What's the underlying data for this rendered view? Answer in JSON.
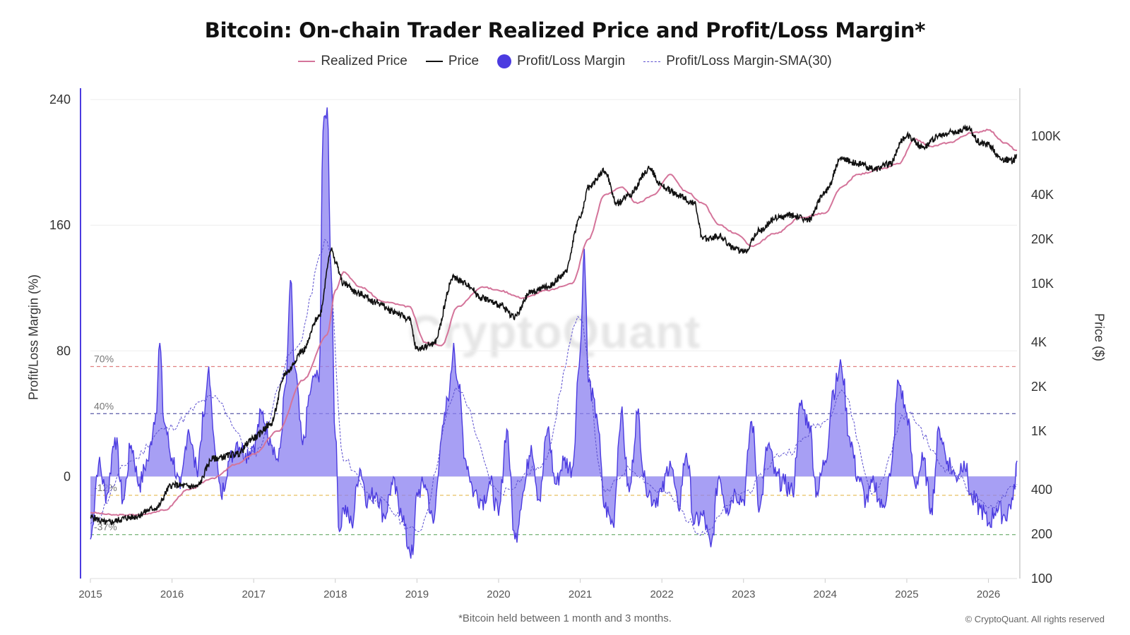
{
  "chart_data": {
    "type": "area",
    "title": "Bitcoin: On-chain Trader Realized Price and Profit/Loss Margin*",
    "footnote": "*Bitcoin held between 1 month and 3 months.",
    "copyright": "© CryptoQuant. All rights reserved",
    "watermark": "CryptoQuant",
    "ylabel_left": "Profit/Loss Margin (%)",
    "ylabel_right": "Price ($)",
    "legend": [
      {
        "label": "Realized Price",
        "color": "#d4749a",
        "style": "line"
      },
      {
        "label": "Price",
        "color": "#111111",
        "style": "line"
      },
      {
        "label": "Profit/Loss Margin",
        "color": "#4b3be0",
        "style": "dot"
      },
      {
        "label": "Profit/Loss Margin-SMA(30)",
        "color": "#5b4fcf",
        "style": "dash"
      }
    ],
    "x_range": [
      2015.0,
      2026.35
    ],
    "x_ticks": [
      "2015",
      "2016",
      "2017",
      "2018",
      "2019",
      "2020",
      "2021",
      "2022",
      "2023",
      "2024",
      "2025",
      "2026"
    ],
    "y_left_range": [
      -65,
      245
    ],
    "y_left_ticks": [
      240,
      160,
      80,
      0
    ],
    "y_right_log_range": [
      100,
      200000
    ],
    "y_right_ticks": [
      {
        "label": "100K",
        "value": 100000
      },
      {
        "label": "40K",
        "value": 40000
      },
      {
        "label": "20K",
        "value": 20000
      },
      {
        "label": "10K",
        "value": 10000
      },
      {
        "label": "4K",
        "value": 4000
      },
      {
        "label": "2K",
        "value": 2000
      },
      {
        "label": "1K",
        "value": 1000
      },
      {
        "label": "400",
        "value": 400
      },
      {
        "label": "200",
        "value": 200
      },
      {
        "label": "100",
        "value": 100
      }
    ],
    "reference_lines": [
      {
        "label": "70%",
        "value": 70,
        "color": "#e08080"
      },
      {
        "label": "40%",
        "value": 40,
        "color": "#6a6ab0"
      },
      {
        "label": "-12%",
        "value": -12,
        "color": "#e8c060"
      },
      {
        "label": "-37%",
        "value": -37,
        "color": "#80b880"
      }
    ],
    "series": [
      {
        "name": "Profit/Loss Margin",
        "color": "#4b3be0",
        "x": [
          2015.0,
          2015.1,
          2015.2,
          2015.3,
          2015.4,
          2015.5,
          2015.6,
          2015.7,
          2015.8,
          2015.85,
          2015.9,
          2016.0,
          2016.1,
          2016.2,
          2016.3,
          2016.4,
          2016.45,
          2016.5,
          2016.6,
          2016.7,
          2016.8,
          2016.9,
          2017.0,
          2017.1,
          2017.2,
          2017.3,
          2017.4,
          2017.45,
          2017.5,
          2017.6,
          2017.7,
          2017.75,
          2017.8,
          2017.85,
          2017.9,
          2017.95,
          2018.0,
          2018.05,
          2018.1,
          2018.2,
          2018.3,
          2018.4,
          2018.5,
          2018.6,
          2018.7,
          2018.8,
          2018.9,
          2018.95,
          2019.0,
          2019.1,
          2019.2,
          2019.3,
          2019.4,
          2019.45,
          2019.5,
          2019.6,
          2019.7,
          2019.8,
          2019.9,
          2020.0,
          2020.1,
          2020.2,
          2020.3,
          2020.4,
          2020.5,
          2020.6,
          2020.7,
          2020.8,
          2020.9,
          2021.0,
          2021.05,
          2021.1,
          2021.2,
          2021.3,
          2021.4,
          2021.5,
          2021.6,
          2021.7,
          2021.8,
          2021.9,
          2022.0,
          2022.1,
          2022.2,
          2022.3,
          2022.4,
          2022.5,
          2022.6,
          2022.7,
          2022.8,
          2022.9,
          2023.0,
          2023.1,
          2023.2,
          2023.3,
          2023.4,
          2023.5,
          2023.6,
          2023.7,
          2023.8,
          2023.9,
          2024.0,
          2024.1,
          2024.2,
          2024.3,
          2024.4,
          2024.5,
          2024.6,
          2024.7,
          2024.8,
          2024.9,
          2025.0,
          2025.1,
          2025.2,
          2025.3,
          2025.4,
          2025.5,
          2025.6,
          2025.7,
          2025.8,
          2025.9,
          2026.0,
          2026.1,
          2026.2,
          2026.3,
          2026.35
        ],
        "values": [
          -40,
          8,
          -12,
          25,
          -15,
          20,
          -5,
          10,
          40,
          85,
          35,
          12,
          -8,
          30,
          5,
          40,
          70,
          30,
          -12,
          10,
          22,
          15,
          20,
          40,
          25,
          10,
          60,
          125,
          70,
          20,
          55,
          65,
          60,
          220,
          235,
          130,
          25,
          -35,
          -20,
          -30,
          5,
          -15,
          -10,
          -25,
          -5,
          -20,
          -45,
          -50,
          -10,
          -5,
          -30,
          25,
          55,
          85,
          60,
          10,
          -10,
          -15,
          -5,
          -25,
          30,
          -40,
          -10,
          20,
          -15,
          30,
          -5,
          10,
          5,
          80,
          145,
          60,
          40,
          -20,
          -30,
          40,
          -10,
          40,
          -5,
          -15,
          -10,
          10,
          -20,
          15,
          -30,
          -25,
          -45,
          0,
          -20,
          -10,
          -15,
          35,
          -20,
          20,
          0,
          -5,
          -10,
          45,
          35,
          -10,
          10,
          55,
          70,
          25,
          0,
          -15,
          -5,
          -20,
          0,
          60,
          40,
          -5,
          10,
          -20,
          30,
          10,
          0,
          10,
          -15,
          -20,
          -30,
          -20,
          -25,
          -15,
          10
        ]
      },
      {
        "name": "Price",
        "color": "#111111",
        "x": [
          2015.0,
          2015.2,
          2015.5,
          2015.8,
          2016.0,
          2016.3,
          2016.5,
          2016.8,
          2017.0,
          2017.2,
          2017.4,
          2017.6,
          2017.8,
          2017.95,
          2018.0,
          2018.1,
          2018.3,
          2018.5,
          2018.7,
          2018.9,
          2019.0,
          2019.2,
          2019.45,
          2019.6,
          2019.8,
          2020.0,
          2020.2,
          2020.4,
          2020.6,
          2020.8,
          2021.0,
          2021.1,
          2021.3,
          2021.45,
          2021.6,
          2021.85,
          2022.0,
          2022.2,
          2022.4,
          2022.5,
          2022.7,
          2022.9,
          2023.0,
          2023.2,
          2023.4,
          2023.6,
          2023.8,
          2024.0,
          2024.2,
          2024.4,
          2024.6,
          2024.8,
          2024.95,
          2025.0,
          2025.2,
          2025.4,
          2025.6,
          2025.75,
          2025.9,
          2026.0,
          2026.15,
          2026.3,
          2026.35
        ],
        "values": [
          260,
          240,
          260,
          300,
          430,
          420,
          650,
          700,
          900,
          1100,
          2500,
          3500,
          6000,
          17000,
          14000,
          10000,
          8500,
          7500,
          6500,
          5800,
          3600,
          3900,
          11000,
          10000,
          8000,
          7200,
          6000,
          8800,
          9500,
          11500,
          28000,
          45000,
          58000,
          35000,
          40000,
          60000,
          46000,
          40000,
          35000,
          20000,
          21000,
          17000,
          16500,
          23000,
          28000,
          29000,
          27000,
          42000,
          70000,
          65000,
          60000,
          65000,
          95000,
          100000,
          85000,
          100000,
          108000,
          112000,
          90000,
          88000,
          70000,
          68000,
          75000
        ]
      },
      {
        "name": "Realized Price",
        "color": "#d4749a",
        "x": [
          2015.0,
          2015.3,
          2015.6,
          2015.9,
          2016.2,
          2016.5,
          2016.8,
          2017.0,
          2017.3,
          2017.6,
          2017.9,
          2018.0,
          2018.1,
          2018.3,
          2018.6,
          2018.9,
          2019.1,
          2019.3,
          2019.5,
          2019.8,
          2020.0,
          2020.3,
          2020.6,
          2020.9,
          2021.1,
          2021.3,
          2021.5,
          2021.7,
          2021.9,
          2022.1,
          2022.3,
          2022.5,
          2022.7,
          2022.9,
          2023.1,
          2023.4,
          2023.7,
          2024.0,
          2024.2,
          2024.4,
          2024.7,
          2024.9,
          2025.1,
          2025.3,
          2025.5,
          2025.8,
          2026.0,
          2026.2,
          2026.35
        ],
        "values": [
          280,
          270,
          270,
          290,
          400,
          480,
          600,
          700,
          1000,
          2200,
          4500,
          9000,
          12000,
          9500,
          7500,
          7000,
          4000,
          3800,
          7000,
          9500,
          9000,
          8000,
          9000,
          10000,
          20000,
          40000,
          45000,
          35000,
          40000,
          55000,
          42000,
          35000,
          25000,
          22000,
          18000,
          22000,
          28000,
          30000,
          45000,
          55000,
          60000,
          65000,
          95000,
          85000,
          90000,
          105000,
          110000,
          90000,
          80000
        ]
      },
      {
        "name": "Profit/Loss Margin-SMA(30)",
        "color": "#5b4fcf",
        "x": [
          2015.0,
          2015.5,
          2015.9,
          2016.5,
          2017.0,
          2017.5,
          2017.9,
          2018.1,
          2018.5,
          2019.0,
          2019.5,
          2020.0,
          2020.5,
          2021.0,
          2021.3,
          2021.6,
          2022.0,
          2022.5,
          2023.0,
          2023.5,
          2024.0,
          2024.2,
          2024.6,
          2025.0,
          2025.5,
          2026.0,
          2026.35
        ],
        "values": [
          -30,
          10,
          30,
          50,
          15,
          80,
          150,
          10,
          -15,
          -35,
          55,
          -10,
          5,
          100,
          -10,
          5,
          -10,
          -35,
          -10,
          15,
          35,
          55,
          -10,
          40,
          5,
          -20,
          -5
        ]
      }
    ]
  }
}
